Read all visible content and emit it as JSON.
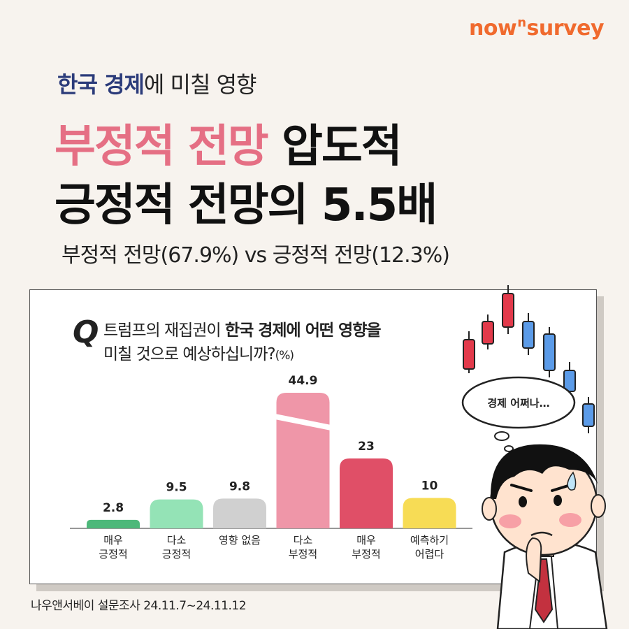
{
  "brand": {
    "logo_prefix": "now",
    "logo_sup": "n",
    "logo_suffix": "survey"
  },
  "eyebrow": {
    "highlight": "한국 경제",
    "rest": "에 미칠 영향"
  },
  "headline": {
    "line1_pink": "부정적 전망",
    "line1_rest": " 압도적",
    "line2": "긍정적 전망의 5.5배"
  },
  "subheadline": "부정적 전망(67.9%) vs 긍정적 전망(12.3%)",
  "question": {
    "mark": "Q",
    "part1": "트럼프의 재집권이 ",
    "bold": "한국 경제에 어떤 영향을",
    "part2": "미칠 것으로 예상하십니까?",
    "unit": "(%)"
  },
  "thought_bubble": "경제 어쩌나…",
  "source": "나우앤서베이 설문조사 24.11.7~24.11.12",
  "colors": {
    "accent_pink": "#e56f84",
    "brand_orange": "#f06a2e",
    "navy": "#2b3b7a"
  },
  "chart_data": {
    "type": "bar",
    "categories": [
      "매우\n긍정적",
      "다소\n긍정적",
      "영향 없음",
      "다소\n부정적",
      "매우\n부정적",
      "예측하기\n어렵다"
    ],
    "values": [
      2.8,
      9.5,
      9.8,
      44.9,
      23,
      10
    ],
    "value_labels": [
      "2.8",
      "9.5",
      "9.8",
      "44.9",
      "23",
      "10"
    ],
    "bar_colors": [
      "#4db87a",
      "#94e3b6",
      "#d0d0d0",
      "#ef96a8",
      "#e04f67",
      "#f7dc55"
    ],
    "axis_break": {
      "bar_index": 3
    },
    "ylabel": "(%)",
    "grid": false,
    "legend": "none"
  }
}
